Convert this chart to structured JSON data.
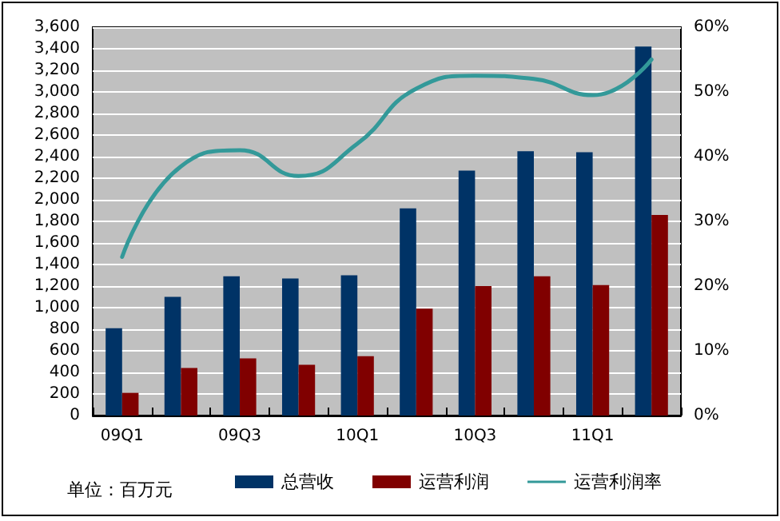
{
  "chart_data": {
    "type": "bar",
    "categories": [
      "09Q1",
      null,
      "09Q3",
      null,
      "10Q1",
      null,
      "10Q3",
      null,
      "11Q1",
      null
    ],
    "series": [
      {
        "name": "总营收",
        "color": "#003366",
        "values": [
          810,
          1100,
          1290,
          1270,
          1300,
          1920,
          2270,
          2450,
          2440,
          3420
        ]
      },
      {
        "name": "运营利润",
        "color": "#800000",
        "values": [
          210,
          440,
          530,
          470,
          550,
          990,
          1200,
          1290,
          1210,
          1860
        ]
      },
      {
        "name": "运营利润率",
        "type": "line",
        "axis": "y2",
        "color": "#339999",
        "values": [
          24.5,
          38.5,
          41,
          37,
          42,
          50.5,
          52.5,
          52,
          49.5,
          55
        ]
      }
    ],
    "ylim": [
      0,
      3600
    ],
    "yticks": [
      {
        "value": 0,
        "label": "0"
      },
      {
        "value": 200,
        "label": "200"
      },
      {
        "value": 400,
        "label": "400"
      },
      {
        "value": 600,
        "label": "600"
      },
      {
        "value": 800,
        "label": "800"
      },
      {
        "value": 1000,
        "label": "1,000"
      },
      {
        "value": 1200,
        "label": "1,200"
      },
      {
        "value": 1400,
        "label": "1,400"
      },
      {
        "value": 1600,
        "label": "1,600"
      },
      {
        "value": 1800,
        "label": "1,800"
      },
      {
        "value": 2000,
        "label": "2,000"
      },
      {
        "value": 2200,
        "label": "2,200"
      },
      {
        "value": 2400,
        "label": "2,400"
      },
      {
        "value": 2600,
        "label": "2,600"
      },
      {
        "value": 2800,
        "label": "2,800"
      },
      {
        "value": 3000,
        "label": "3,000"
      },
      {
        "value": 3200,
        "label": "3,200"
      },
      {
        "value": 3400,
        "label": "3,400"
      },
      {
        "value": 3600,
        "label": "3,600"
      }
    ],
    "y2lim": [
      0,
      60
    ],
    "y2ticks": [
      {
        "value": 0,
        "label": "0%"
      },
      {
        "value": 10,
        "label": "10%"
      },
      {
        "value": 20,
        "label": "20%"
      },
      {
        "value": 30,
        "label": "30%"
      },
      {
        "value": 40,
        "label": "40%"
      },
      {
        "value": 50,
        "label": "50%"
      },
      {
        "value": 60,
        "label": "60%"
      }
    ],
    "grid": "y",
    "legend": "bottom",
    "marker": "none",
    "line_style": "solid",
    "annotations": [
      "单位：百万元"
    ]
  }
}
